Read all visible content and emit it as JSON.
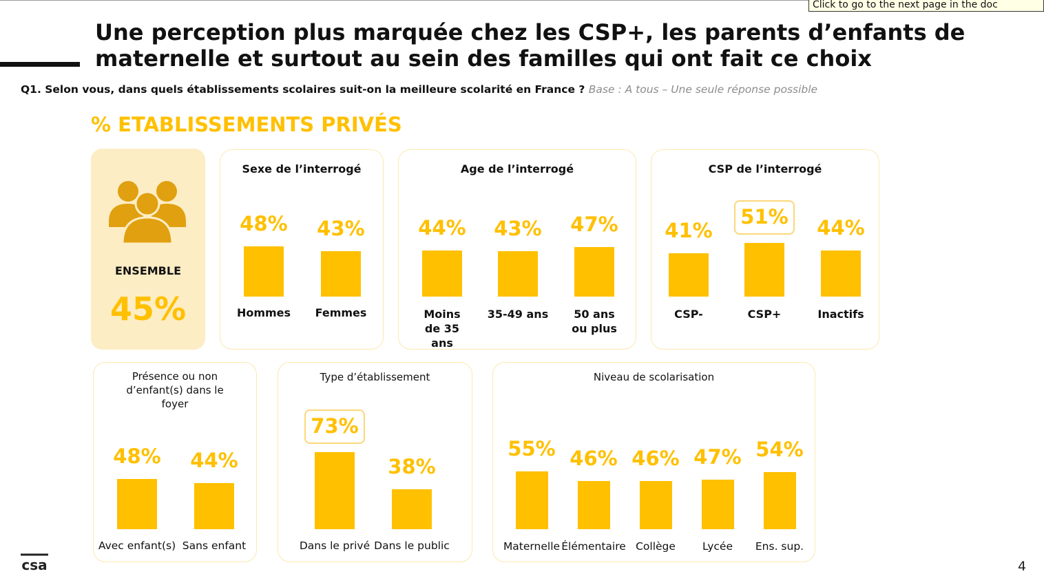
{
  "tooltip": "Click to go to the next page in the doc",
  "title": "Une perception plus marquée chez les CSP+, les parents d’enfants de maternelle et surtout au sein des familles qui ont fait ce choix",
  "question": {
    "text": "Q1. Selon vous, dans quels établissements scolaires suit-on la meilleure scolarité en France ?",
    "base": "Base : A tous – Une seule réponse possible"
  },
  "section_title": "% ETABLISSEMENTS PRIVÉS",
  "page_number": "4",
  "logo_text": "csa",
  "colors": {
    "bar": "#ffc000",
    "ensemble_bg": "#fdedc4",
    "box_border": "#fde8b0",
    "highlight_border": "#fbd779"
  },
  "ensemble": {
    "label": "ENSEMBLE",
    "value_label": "45%",
    "value": 45,
    "icon": "group-people-icon"
  },
  "chart_data": [
    {
      "type": "bar",
      "title": "Sexe de l’interrogé",
      "categories": [
        "Hommes",
        "Femmes"
      ],
      "values": [
        48,
        43
      ],
      "labels": [
        "48%",
        "43%"
      ],
      "highlight": []
    },
    {
      "type": "bar",
      "title": "Age de l’interrogé",
      "categories": [
        "Moins de 35 ans",
        "35-49 ans",
        "50 ans ou plus"
      ],
      "values": [
        44,
        43,
        47
      ],
      "labels": [
        "44%",
        "43%",
        "47%"
      ],
      "highlight": []
    },
    {
      "type": "bar",
      "title": "CSP de l’interrogé",
      "categories": [
        "CSP-",
        "CSP+",
        "Inactifs"
      ],
      "values": [
        41,
        51,
        44
      ],
      "labels": [
        "41%",
        "51%",
        "44%"
      ],
      "highlight": [
        1
      ]
    },
    {
      "type": "bar",
      "title": "Présence ou non d’enfant(s) dans le foyer",
      "categories": [
        "Avec enfant(s)",
        "Sans enfant"
      ],
      "values": [
        48,
        44
      ],
      "labels": [
        "48%",
        "44%"
      ],
      "highlight": []
    },
    {
      "type": "bar",
      "title": "Type d’établissement",
      "categories": [
        "Dans le privé",
        "Dans le public"
      ],
      "values": [
        73,
        38
      ],
      "labels": [
        "73%",
        "38%"
      ],
      "highlight": [
        0
      ]
    },
    {
      "type": "bar",
      "title": "Niveau de scolarisation",
      "categories": [
        "Maternelle",
        "Élémentaire",
        "Collège",
        "Lycée",
        "Ens. sup."
      ],
      "values": [
        55,
        46,
        46,
        47,
        54
      ],
      "labels": [
        "55%",
        "46%",
        "46%",
        "47%",
        "54%"
      ],
      "highlight": []
    }
  ]
}
